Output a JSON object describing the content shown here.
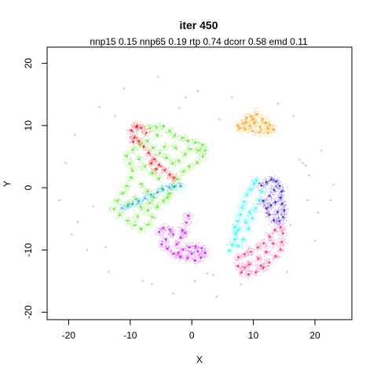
{
  "chart_data": {
    "type": "scatter",
    "title": "iter 450",
    "subtitle": "nnp15 0.15 nnp65 0.19 rtp 0.74 dcorr 0.58 emd 0.11",
    "xlabel": "X",
    "ylabel": "Y",
    "xlim": [
      -23.5,
      26
    ],
    "ylim": [
      -21.2,
      22.6
    ],
    "xticks": [
      -20,
      -10,
      0,
      10,
      20
    ],
    "yticks": [
      -20,
      -10,
      0,
      10,
      20
    ],
    "grid": false,
    "legend": "none",
    "box": true,
    "clusters": [
      {
        "color": "#ff9900",
        "points": [
          [
            7.5,
            10.0
          ],
          [
            8.3,
            10.3
          ],
          [
            8.9,
            11.3
          ],
          [
            9.7,
            11.5
          ],
          [
            10.6,
            11.8
          ],
          [
            11.4,
            11.0
          ],
          [
            12.0,
            10.5
          ],
          [
            12.7,
            10.1
          ],
          [
            13.3,
            9.4
          ],
          [
            12.3,
            8.8
          ],
          [
            11.0,
            8.9
          ],
          [
            9.9,
            9.1
          ],
          [
            8.7,
            9.4
          ],
          [
            7.8,
            9.6
          ],
          [
            10.2,
            10.4
          ],
          [
            11.1,
            9.8
          ],
          [
            9.4,
            10.0
          ],
          [
            12.4,
            9.5
          ],
          [
            10.0,
            11.0
          ],
          [
            8.8,
            10.5
          ]
        ]
      },
      {
        "color": "#ff0000",
        "points": [
          [
            -9.8,
            9.2
          ],
          [
            -9.0,
            9.8
          ],
          [
            -8.2,
            9.6
          ],
          [
            -7.4,
            8.8
          ],
          [
            -9.3,
            8.1
          ],
          [
            -8.6,
            7.5
          ],
          [
            -7.8,
            6.6
          ],
          [
            -7.0,
            5.6
          ],
          [
            -6.1,
            4.6
          ],
          [
            -5.3,
            3.7
          ],
          [
            -4.4,
            2.8
          ],
          [
            -3.6,
            2.1
          ],
          [
            -2.9,
            1.6
          ],
          [
            -6.6,
            3.9
          ],
          [
            -5.8,
            3.0
          ],
          [
            -8.9,
            9.9
          ],
          [
            -9.5,
            7.4
          ]
        ]
      },
      {
        "color": "#44ee00",
        "points": [
          [
            -6.8,
            9.5
          ],
          [
            -5.7,
            9.7
          ],
          [
            -4.6,
            9.9
          ],
          [
            -3.6,
            9.2
          ],
          [
            -2.8,
            8.4
          ],
          [
            -1.6,
            8.0
          ],
          [
            -0.6,
            7.5
          ],
          [
            0.6,
            7.3
          ],
          [
            1.7,
            6.9
          ],
          [
            2.2,
            6.0
          ],
          [
            1.8,
            5.0
          ],
          [
            0.9,
            4.1
          ],
          [
            -0.4,
            3.4
          ],
          [
            -1.3,
            2.6
          ],
          [
            -2.4,
            1.4
          ],
          [
            -2.9,
            0.2
          ],
          [
            -3.6,
            -0.9
          ],
          [
            -4.6,
            -2.1
          ],
          [
            -5.6,
            -3.1
          ],
          [
            -6.4,
            -4.7
          ],
          [
            -7.1,
            -5.9
          ],
          [
            -8.2,
            -6.6
          ],
          [
            -9.3,
            -6.0
          ],
          [
            -10.4,
            -5.3
          ],
          [
            -11.7,
            -4.4
          ],
          [
            -12.7,
            -3.4
          ],
          [
            -12.1,
            -2.1
          ],
          [
            -11.2,
            -0.9
          ],
          [
            -10.6,
            0.3
          ],
          [
            -9.9,
            1.6
          ],
          [
            -9.6,
            2.7
          ],
          [
            -10.1,
            3.9
          ],
          [
            -10.6,
            5.1
          ],
          [
            -9.6,
            6.1
          ],
          [
            -8.4,
            6.9
          ],
          [
            -7.2,
            7.5
          ],
          [
            -6.3,
            6.4
          ],
          [
            -5.2,
            5.6
          ],
          [
            -4.1,
            4.8
          ],
          [
            -3.1,
            3.9
          ],
          [
            -2.1,
            4.4
          ],
          [
            -1.1,
            5.4
          ],
          [
            -7.6,
            3.4
          ],
          [
            -6.4,
            2.4
          ],
          [
            -5.4,
            1.5
          ],
          [
            -8.1,
            0.6
          ],
          [
            -7.2,
            -0.6
          ],
          [
            -6.1,
            -1.5
          ],
          [
            -9.1,
            -1.8
          ],
          [
            -8.3,
            -3.1
          ],
          [
            -7.1,
            -3.6
          ],
          [
            -10.3,
            -2.6
          ],
          [
            -4.8,
            -0.2
          ],
          [
            -3.9,
            -1.6
          ],
          [
            -8.8,
            -4.6
          ],
          [
            -6.9,
            -2.4
          ],
          [
            -4.4,
            6.6
          ],
          [
            -2.6,
            6.4
          ],
          [
            -0.2,
            6.2
          ],
          [
            1.1,
            6.0
          ],
          [
            -8.6,
            4.6
          ],
          [
            -5.6,
            8.4
          ]
        ]
      },
      {
        "color": "#00aadd",
        "points": [
          [
            -9.6,
            -2.6
          ],
          [
            -8.6,
            -2.1
          ],
          [
            -7.6,
            -1.7
          ],
          [
            -6.6,
            -1.1
          ],
          [
            -5.6,
            -0.7
          ],
          [
            -4.6,
            -0.3
          ],
          [
            -3.6,
            0.0
          ],
          [
            -2.8,
            0.2
          ],
          [
            -1.8,
            0.3
          ],
          [
            -11.3,
            -3.3
          ],
          [
            -10.4,
            -2.9
          ]
        ]
      },
      {
        "color": "#cc00ff",
        "points": [
          [
            -5.3,
            -7.1
          ],
          [
            -4.6,
            -6.5
          ],
          [
            -3.6,
            -6.7
          ],
          [
            -3.0,
            -7.5
          ],
          [
            -4.2,
            -8.3
          ],
          [
            -4.9,
            -9.1
          ],
          [
            -4.0,
            -9.8
          ],
          [
            -3.0,
            -10.6
          ],
          [
            -1.9,
            -11.1
          ],
          [
            -0.7,
            -11.3
          ],
          [
            0.5,
            -11.7
          ],
          [
            1.5,
            -11.2
          ],
          [
            2.2,
            -10.5
          ],
          [
            1.6,
            -9.7
          ],
          [
            0.6,
            -9.4
          ],
          [
            -0.4,
            -9.6
          ],
          [
            -1.4,
            -9.9
          ],
          [
            -2.4,
            -9.1
          ],
          [
            -1.8,
            -8.0
          ],
          [
            -1.5,
            -6.8
          ],
          [
            -0.9,
            -5.6
          ],
          [
            -0.6,
            -4.5
          ],
          [
            -1.1,
            -7.3
          ],
          [
            -2.2,
            -10.5
          ],
          [
            0.0,
            -10.6
          ],
          [
            1.0,
            -10.2
          ]
        ]
      },
      {
        "color": "#00ffff",
        "points": [
          [
            6.1,
            -10.1
          ],
          [
            6.6,
            -9.2
          ],
          [
            7.0,
            -8.3
          ],
          [
            7.1,
            -7.4
          ],
          [
            7.0,
            -6.3
          ],
          [
            7.4,
            -5.4
          ],
          [
            7.9,
            -4.3
          ],
          [
            8.2,
            -3.2
          ],
          [
            8.5,
            -2.2
          ],
          [
            9.0,
            -1.2
          ],
          [
            9.6,
            -0.3
          ],
          [
            10.1,
            0.6
          ],
          [
            10.5,
            1.2
          ],
          [
            7.6,
            -9.4
          ],
          [
            8.4,
            -8.3
          ],
          [
            9.2,
            -6.6
          ],
          [
            9.8,
            -4.9
          ],
          [
            10.4,
            -3.3
          ],
          [
            11.0,
            -2.0
          ],
          [
            11.3,
            -0.7
          ],
          [
            8.7,
            -5.6
          ],
          [
            9.4,
            -3.9
          ],
          [
            7.6,
            -6.7
          ]
        ]
      },
      {
        "color": "#3300dd",
        "points": [
          [
            11.3,
            0.4
          ],
          [
            12.1,
            0.9
          ],
          [
            12.9,
            1.3
          ],
          [
            13.7,
            1.0
          ],
          [
            14.3,
            0.3
          ],
          [
            14.6,
            -0.6
          ],
          [
            14.4,
            -1.6
          ],
          [
            14.7,
            -2.6
          ],
          [
            15.0,
            -3.6
          ],
          [
            14.8,
            -4.7
          ],
          [
            14.2,
            -5.4
          ],
          [
            13.3,
            -5.2
          ],
          [
            12.6,
            -4.3
          ],
          [
            12.1,
            -3.3
          ],
          [
            11.6,
            -2.1
          ],
          [
            12.6,
            -1.3
          ],
          [
            13.4,
            -0.4
          ],
          [
            13.6,
            -2.3
          ],
          [
            13.9,
            -3.9
          ],
          [
            12.9,
            -2.8
          ]
        ]
      },
      {
        "color": "#ff1177",
        "points": [
          [
            7.6,
            -11.2
          ],
          [
            7.5,
            -12.6
          ],
          [
            8.1,
            -13.6
          ],
          [
            9.2,
            -13.9
          ],
          [
            10.4,
            -13.6
          ],
          [
            11.6,
            -12.9
          ],
          [
            12.6,
            -12.0
          ],
          [
            13.6,
            -11.0
          ],
          [
            14.4,
            -9.9
          ],
          [
            14.6,
            -8.7
          ],
          [
            14.8,
            -7.3
          ],
          [
            14.4,
            -6.3
          ],
          [
            13.5,
            -6.8
          ],
          [
            12.7,
            -7.9
          ],
          [
            11.7,
            -8.9
          ],
          [
            10.7,
            -9.6
          ],
          [
            9.6,
            -10.3
          ],
          [
            8.6,
            -10.7
          ],
          [
            9.4,
            -12.3
          ],
          [
            10.8,
            -11.4
          ],
          [
            12.1,
            -10.3
          ],
          [
            13.2,
            -9.0
          ],
          [
            8.6,
            -12.8
          ],
          [
            11.2,
            -12.5
          ]
        ]
      },
      {
        "color": "#aa88cc",
        "points": [
          [
            -21.5,
            -2.0
          ],
          [
            -19.0,
            8.5
          ],
          [
            -17.0,
            -10.0
          ],
          [
            -15.0,
            13.0
          ],
          [
            -13.5,
            -13.5
          ],
          [
            -11.0,
            16.0
          ],
          [
            -8.0,
            -15.0
          ],
          [
            -6.5,
            -15.5
          ],
          [
            -5.5,
            17.8
          ],
          [
            -3.0,
            -17.0
          ],
          [
            -1.0,
            14.5
          ],
          [
            1.0,
            15.5
          ],
          [
            3.5,
            -14.0
          ],
          [
            4.5,
            11.0
          ],
          [
            4.0,
            -17.5
          ],
          [
            6.5,
            14.5
          ],
          [
            8.0,
            -15.5
          ],
          [
            14.0,
            13.5
          ],
          [
            16.0,
            -6.0
          ],
          [
            17.5,
            4.5
          ],
          [
            18.0,
            4.0
          ],
          [
            18.5,
            3.6
          ],
          [
            18.8,
            -2.0
          ],
          [
            19.0,
            2.0
          ],
          [
            20.0,
            -8.5
          ],
          [
            21.0,
            6.0
          ],
          [
            22.5,
            -2.0
          ],
          [
            23.0,
            0.5
          ],
          [
            -18.5,
            -5.5
          ],
          [
            -20.5,
            4.0
          ],
          [
            -16.0,
            -3.0
          ],
          [
            16.5,
            11.5
          ],
          [
            15.5,
            -13.5
          ],
          [
            -12.5,
            11.5
          ],
          [
            2.5,
            -13.8
          ],
          [
            -2.0,
            12.8
          ],
          [
            -14.0,
            -9.5
          ],
          [
            20.5,
            -4.0
          ],
          [
            -19.5,
            -7.5
          ],
          [
            0.5,
            -15.0
          ]
        ]
      }
    ]
  }
}
